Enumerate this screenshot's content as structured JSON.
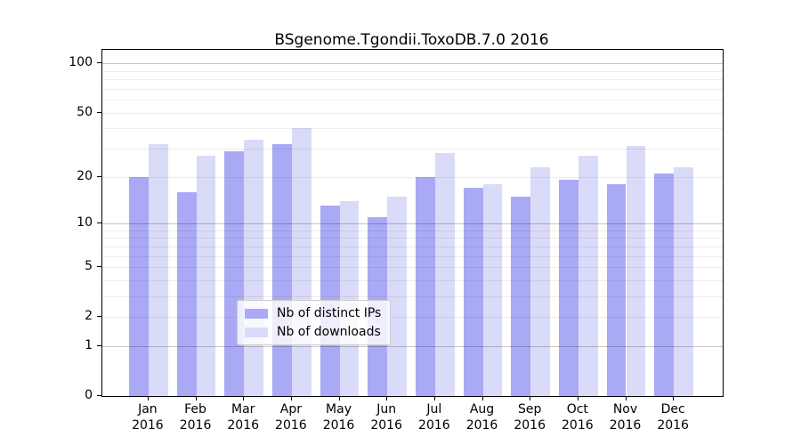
{
  "chart_data": {
    "type": "bar",
    "title": "BSgenome.Tgondii.ToxoDB.7.0 2016",
    "year": "2016",
    "months": [
      "Jan",
      "Feb",
      "Mar",
      "Apr",
      "May",
      "Jun",
      "Jul",
      "Aug",
      "Sep",
      "Oct",
      "Nov",
      "Dec"
    ],
    "categories": [
      "Jan 2016",
      "Feb 2016",
      "Mar 2016",
      "Apr 2016",
      "May 2016",
      "Jun 2016",
      "Jul 2016",
      "Aug 2016",
      "Sep 2016",
      "Oct 2016",
      "Nov 2016",
      "Dec 2016"
    ],
    "series": [
      {
        "name": "Nb of distinct IPs",
        "color": "#a9a9f5",
        "values": [
          20,
          16,
          29,
          32,
          13,
          11,
          20,
          17,
          15,
          19,
          18,
          21
        ]
      },
      {
        "name": "Nb of downloads",
        "color": "#dadaf9",
        "values": [
          32,
          27,
          34,
          40,
          14,
          15,
          28,
          18,
          23,
          27,
          31,
          23
        ]
      }
    ],
    "xlabel": "",
    "ylabel": "",
    "yscale": "log1p",
    "ylim": [
      0,
      120
    ],
    "y_tick_values": [
      100,
      50,
      20,
      10,
      5,
      2,
      1,
      0
    ],
    "y_tick_labels": [
      "100",
      "50",
      "20",
      "10",
      "5",
      "2",
      "1",
      "0"
    ],
    "gridlines": {
      "major": [
        1,
        10,
        100
      ],
      "minor": [
        2,
        3,
        4,
        5,
        6,
        7,
        8,
        9,
        20,
        30,
        40,
        50,
        60,
        70,
        80,
        90
      ]
    },
    "grid": true,
    "legend_position": "lower center"
  },
  "palette": {
    "axis": "#000000",
    "legend_border": "#cccccc"
  }
}
